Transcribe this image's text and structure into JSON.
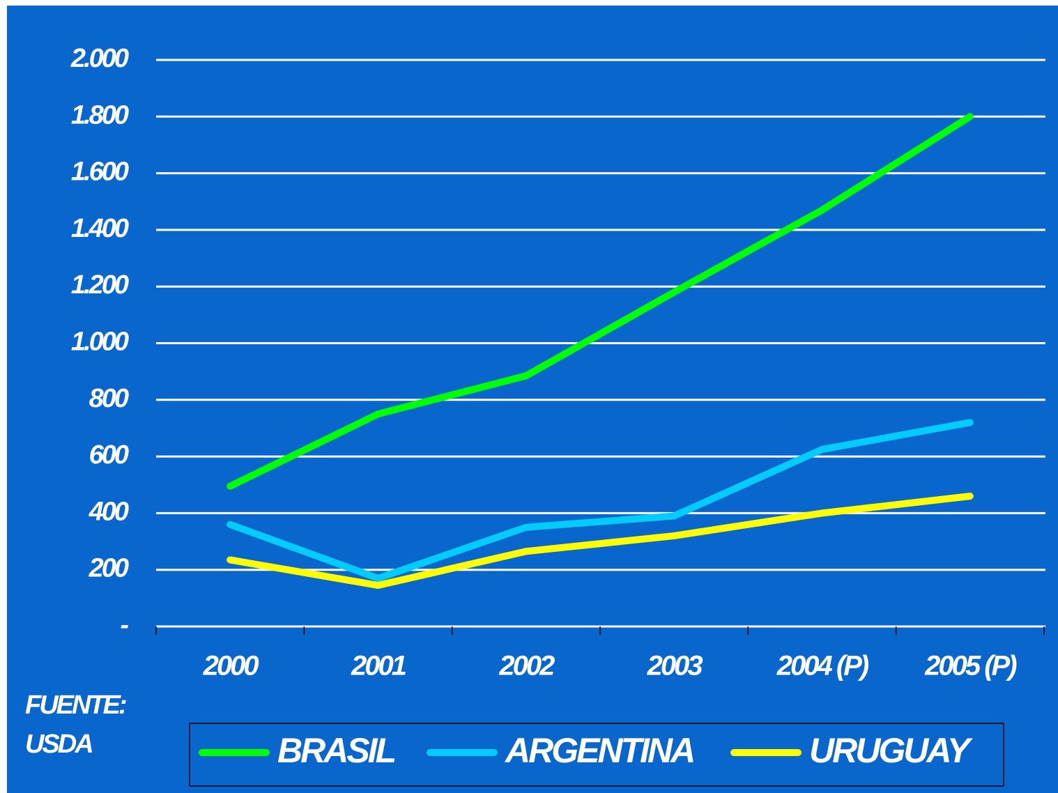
{
  "chart_data": {
    "type": "line",
    "categories": [
      "2000",
      "2001",
      "2002",
      "2003",
      "2004 (P)",
      "2005 (P)"
    ],
    "series": [
      {
        "name": "BRASIL",
        "color": "#00ff00",
        "values": [
          495,
          750,
          885,
          1180,
          1470,
          1800
        ]
      },
      {
        "name": "ARGENTINA",
        "color": "#00ccff",
        "values": [
          360,
          170,
          350,
          390,
          625,
          720
        ]
      },
      {
        "name": "URUGUAY",
        "color": "#ffff00",
        "values": [
          235,
          145,
          265,
          320,
          400,
          460
        ]
      }
    ],
    "ylim": [
      0,
      2000
    ],
    "yticks": [
      {
        "value": 0,
        "label": "-"
      },
      200,
      400,
      600,
      800,
      {
        "value": 1000,
        "label": "1.000"
      },
      {
        "value": 1200,
        "label": "1.200"
      },
      {
        "value": 1400,
        "label": "1.400"
      },
      {
        "value": 1600,
        "label": "1.600"
      },
      {
        "value": 1800,
        "label": "1.800"
      },
      {
        "value": 2000,
        "label": "2.000"
      }
    ],
    "grid": true,
    "annotation": [
      "FUENTE:",
      "USDA"
    ],
    "legend": "bottom"
  }
}
